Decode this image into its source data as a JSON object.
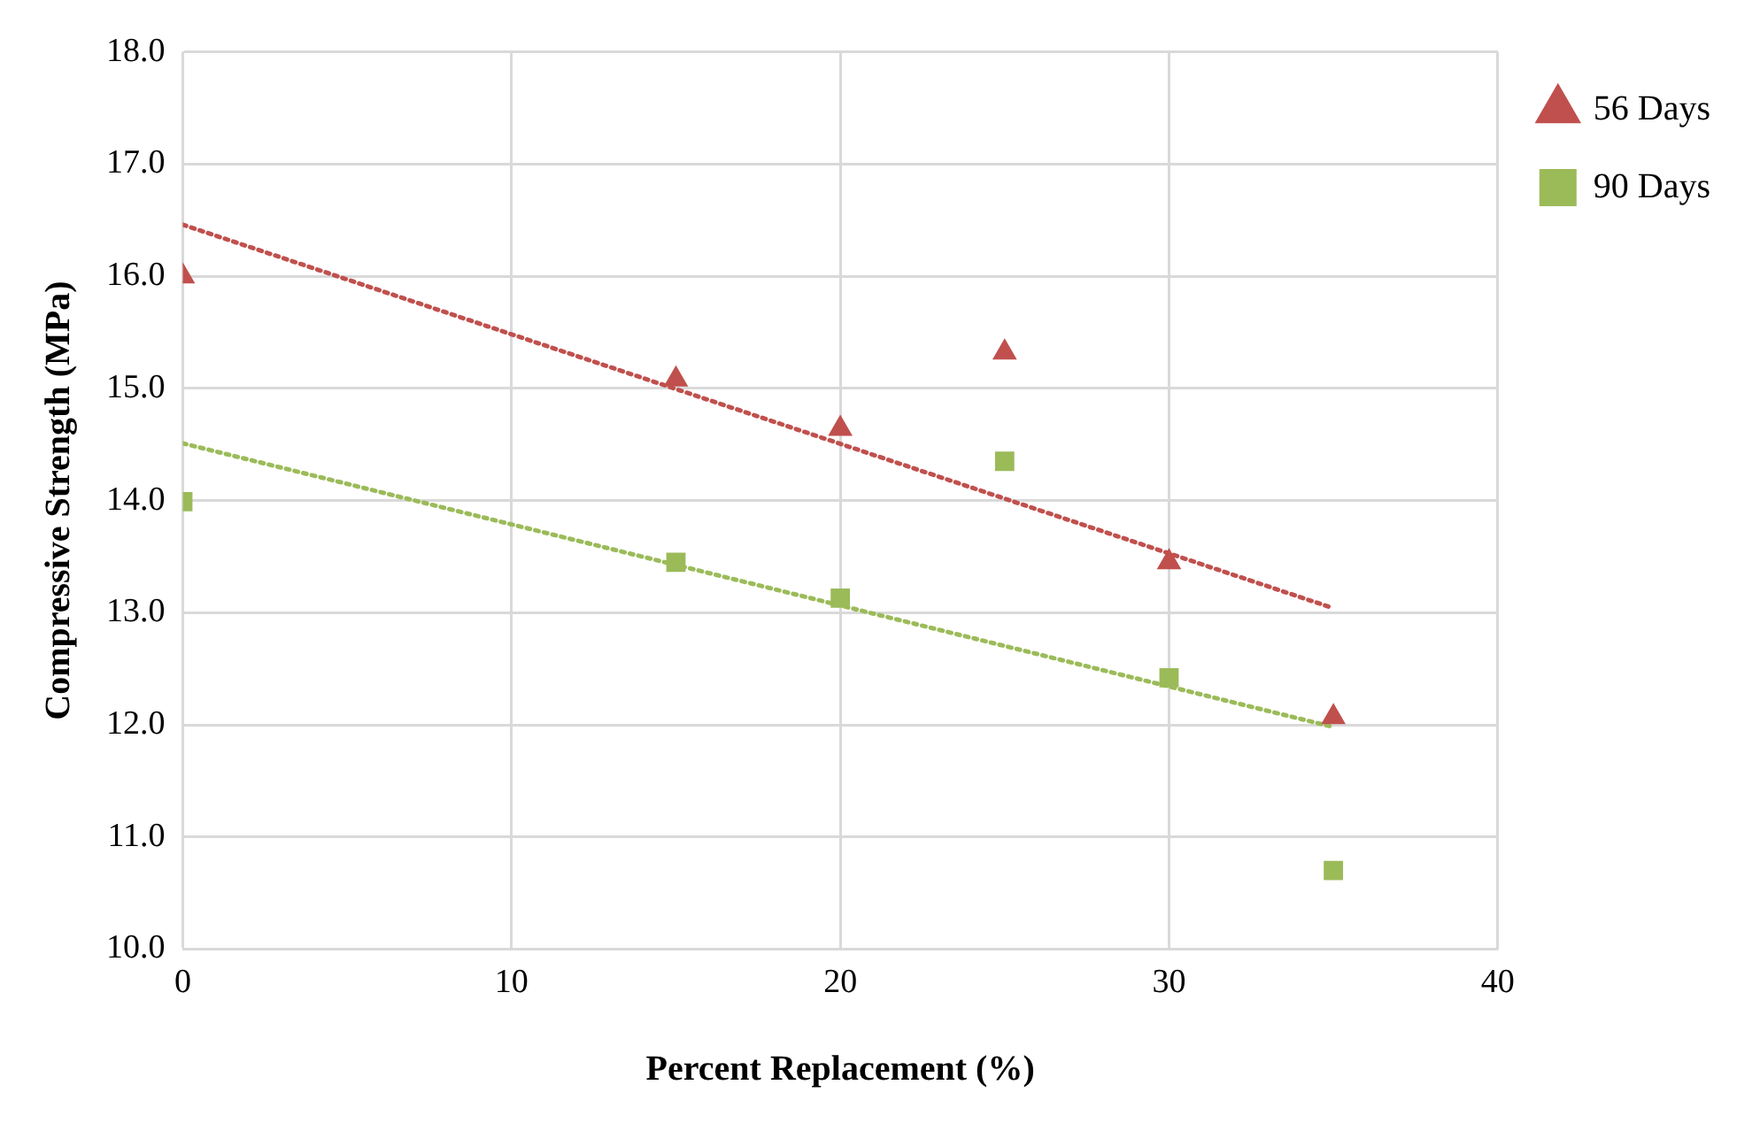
{
  "chart_data": {
    "type": "scatter",
    "xlabel": "Percent Replacement (%)",
    "ylabel": "Compressive Strength (MPa)",
    "xlim": [
      0,
      40
    ],
    "xticks": [
      0,
      10,
      20,
      30,
      40
    ],
    "ylim": [
      10,
      18
    ],
    "yticks": [
      {
        "value": 10,
        "label": "10.0"
      },
      {
        "value": 11,
        "label": "11.0"
      },
      {
        "value": 12,
        "label": "12.0"
      },
      {
        "value": 13,
        "label": "13.0"
      },
      {
        "value": 14,
        "label": "14.0"
      },
      {
        "value": 15,
        "label": "15.0"
      },
      {
        "value": 16,
        "label": "16.0"
      },
      {
        "value": 17,
        "label": "17.0"
      },
      {
        "value": 18,
        "label": "18.0"
      }
    ],
    "grid": true,
    "legend": "top right",
    "series": [
      {
        "name": "56 Days",
        "color": "#c0504d",
        "marker": "triangle",
        "x": [
          0,
          15,
          20,
          25,
          30,
          35
        ],
        "values": [
          16.0,
          15.08,
          14.64,
          15.32,
          13.45,
          12.07
        ]
      },
      {
        "name": "90 Days",
        "color": "#9bbb59",
        "marker": "square",
        "x": [
          0,
          15,
          20,
          25,
          30,
          35
        ],
        "values": [
          13.99,
          13.45,
          13.13,
          14.35,
          12.42,
          10.7
        ]
      },
      {
        "type": "line",
        "color": "#c0504d",
        "line_style": "dotted",
        "marker": "none",
        "x": [
          0,
          35
        ],
        "values": [
          16.46,
          13.04
        ]
      },
      {
        "type": "line",
        "color": "#9bbb59",
        "line_style": "dotted",
        "marker": "none",
        "x": [
          0,
          35
        ],
        "values": [
          14.51,
          11.98
        ]
      }
    ]
  }
}
